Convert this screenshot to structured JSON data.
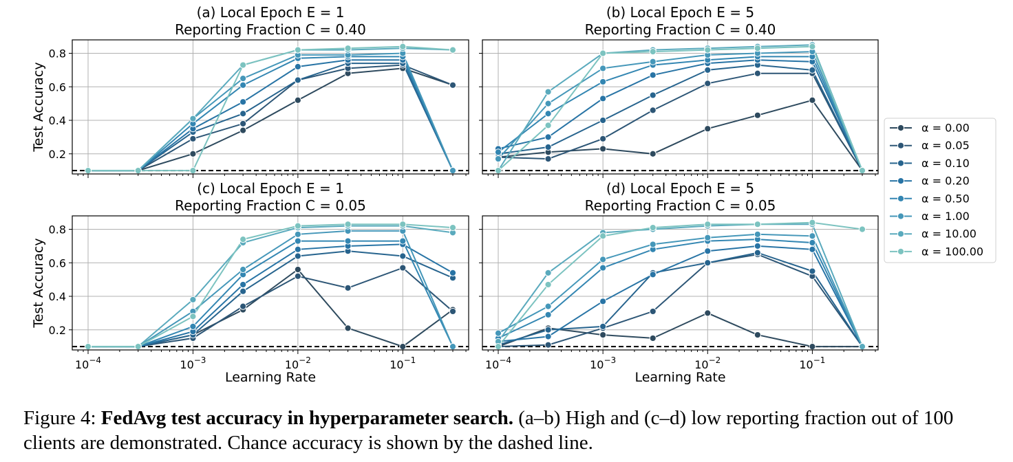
{
  "chart_data": [
    {
      "type": "line",
      "title": "(a) Local Epoch E = 1\nReporting Fraction C = 0.40",
      "ylabel": "Test Accuracy",
      "xlabel": "",
      "xscale": "log",
      "x": [
        0.0001,
        0.0003,
        0.001,
        0.003,
        0.01,
        0.03,
        0.1,
        0.3
      ],
      "xticks": [
        "10^-4",
        "10^-3",
        "10^-2",
        "10^-1"
      ],
      "ylim": [
        0.08,
        0.88
      ],
      "yticks": [
        "0.2",
        "0.4",
        "0.6",
        "0.8"
      ],
      "chance_line": 0.1,
      "grid": true,
      "series": [
        {
          "name": "α = 0.00",
          "values": [
            0.1,
            0.1,
            0.2,
            0.34,
            0.52,
            0.68,
            0.71,
            0.61
          ]
        },
        {
          "name": "α = 0.05",
          "values": [
            0.1,
            0.1,
            0.29,
            0.38,
            0.64,
            0.71,
            0.73,
            0.61
          ]
        },
        {
          "name": "α = 0.10",
          "values": [
            0.1,
            0.1,
            0.33,
            0.44,
            0.64,
            0.74,
            0.74,
            0.1
          ]
        },
        {
          "name": "α = 0.20",
          "values": [
            0.1,
            0.1,
            0.35,
            0.51,
            0.72,
            0.76,
            0.76,
            0.1
          ]
        },
        {
          "name": "α = 0.50",
          "values": [
            0.1,
            0.1,
            0.38,
            0.61,
            0.77,
            0.78,
            0.78,
            0.1
          ]
        },
        {
          "name": "α = 1.00",
          "values": [
            0.1,
            0.1,
            0.41,
            0.65,
            0.79,
            0.79,
            0.8,
            0.1
          ]
        },
        {
          "name": "α = 10.00",
          "values": [
            0.1,
            0.1,
            0.41,
            0.73,
            0.82,
            0.82,
            0.83,
            0.82
          ]
        },
        {
          "name": "α = 100.00",
          "values": [
            0.1,
            0.1,
            0.1,
            0.73,
            0.82,
            0.83,
            0.84,
            0.82
          ]
        }
      ]
    },
    {
      "type": "line",
      "title": "(b) Local Epoch E = 5\nReporting Fraction C = 0.40",
      "ylabel": "",
      "xlabel": "",
      "xscale": "log",
      "x": [
        0.0001,
        0.0003,
        0.001,
        0.003,
        0.01,
        0.03,
        0.1,
        0.3
      ],
      "xticks": [
        "10^-4",
        "10^-3",
        "10^-2",
        "10^-1"
      ],
      "ylim": [
        0.08,
        0.88
      ],
      "yticks": [
        "0.2",
        "0.4",
        "0.6",
        "0.8"
      ],
      "chance_line": 0.1,
      "grid": true,
      "series": [
        {
          "name": "α = 0.00",
          "values": [
            0.18,
            0.21,
            0.23,
            0.2,
            0.35,
            0.43,
            0.52,
            0.1
          ]
        },
        {
          "name": "α = 0.05",
          "values": [
            0.18,
            0.17,
            0.29,
            0.46,
            0.62,
            0.68,
            0.68,
            0.1
          ]
        },
        {
          "name": "α = 0.10",
          "values": [
            0.2,
            0.24,
            0.4,
            0.55,
            0.7,
            0.73,
            0.7,
            0.1
          ]
        },
        {
          "name": "α = 0.20",
          "values": [
            0.23,
            0.3,
            0.53,
            0.67,
            0.74,
            0.76,
            0.75,
            0.1
          ]
        },
        {
          "name": "α = 0.50",
          "values": [
            0.21,
            0.44,
            0.63,
            0.73,
            0.76,
            0.78,
            0.78,
            0.1
          ]
        },
        {
          "name": "α = 1.00",
          "values": [
            0.17,
            0.5,
            0.71,
            0.75,
            0.79,
            0.8,
            0.81,
            0.1
          ]
        },
        {
          "name": "α = 10.00",
          "values": [
            0.1,
            0.57,
            0.8,
            0.82,
            0.83,
            0.84,
            0.85,
            0.1
          ]
        },
        {
          "name": "α = 100.00",
          "values": [
            0.1,
            0.37,
            0.8,
            0.81,
            0.82,
            0.83,
            0.84,
            0.1
          ]
        }
      ]
    },
    {
      "type": "line",
      "title": "(c) Local Epoch E = 1\nReporting Fraction C = 0.05",
      "ylabel": "Test Accuracy",
      "xlabel": "Learning Rate",
      "xscale": "log",
      "x": [
        0.0001,
        0.0003,
        0.001,
        0.003,
        0.01,
        0.03,
        0.1,
        0.3
      ],
      "xticks": [
        "10^-4",
        "10^-3",
        "10^-2",
        "10^-1"
      ],
      "ylim": [
        0.08,
        0.88
      ],
      "yticks": [
        "0.2",
        "0.4",
        "0.6",
        "0.8"
      ],
      "chance_line": 0.1,
      "grid": true,
      "series": [
        {
          "name": "α = 0.00",
          "values": [
            0.1,
            0.1,
            0.17,
            0.32,
            0.56,
            0.21,
            0.1,
            0.32
          ]
        },
        {
          "name": "α = 0.05",
          "values": [
            0.1,
            0.1,
            0.15,
            0.34,
            0.52,
            0.45,
            0.57,
            0.31
          ]
        },
        {
          "name": "α = 0.10",
          "values": [
            0.1,
            0.1,
            0.17,
            0.43,
            0.64,
            0.67,
            0.64,
            0.51
          ]
        },
        {
          "name": "α = 0.20",
          "values": [
            0.1,
            0.1,
            0.19,
            0.47,
            0.68,
            0.7,
            0.71,
            0.54
          ]
        },
        {
          "name": "α = 0.50",
          "values": [
            0.1,
            0.1,
            0.22,
            0.53,
            0.73,
            0.73,
            0.73,
            0.1
          ]
        },
        {
          "name": "α = 1.00",
          "values": [
            0.1,
            0.1,
            0.31,
            0.56,
            0.77,
            0.79,
            0.79,
            0.1
          ]
        },
        {
          "name": "α = 10.00",
          "values": [
            0.1,
            0.1,
            0.38,
            0.72,
            0.81,
            0.82,
            0.82,
            0.78
          ]
        },
        {
          "name": "α = 100.00",
          "values": [
            0.1,
            0.1,
            0.28,
            0.74,
            0.82,
            0.83,
            0.83,
            0.81
          ]
        }
      ]
    },
    {
      "type": "line",
      "title": "(d) Local Epoch E = 5\nReporting Fraction C = 0.05",
      "ylabel": "",
      "xlabel": "Learning Rate",
      "xscale": "log",
      "x": [
        0.0001,
        0.0003,
        0.001,
        0.003,
        0.01,
        0.03,
        0.1,
        0.3
      ],
      "xticks": [
        "10^-4",
        "10^-3",
        "10^-2",
        "10^-1"
      ],
      "ylim": [
        0.08,
        0.88
      ],
      "yticks": [
        "0.2",
        "0.4",
        "0.6",
        "0.8"
      ],
      "chance_line": 0.1,
      "grid": true,
      "series": [
        {
          "name": "α = 0.00",
          "values": [
            0.1,
            0.21,
            0.17,
            0.15,
            0.3,
            0.17,
            0.1,
            0.1
          ]
        },
        {
          "name": "α = 0.05",
          "values": [
            0.1,
            0.11,
            0.21,
            0.31,
            0.6,
            0.65,
            0.52,
            0.1
          ]
        },
        {
          "name": "α = 0.10",
          "values": [
            0.11,
            0.2,
            0.22,
            0.54,
            0.6,
            0.66,
            0.55,
            0.1
          ]
        },
        {
          "name": "α = 0.20",
          "values": [
            0.13,
            0.16,
            0.37,
            0.53,
            0.67,
            0.7,
            0.68,
            0.1
          ]
        },
        {
          "name": "α = 0.50",
          "values": [
            0.15,
            0.29,
            0.57,
            0.68,
            0.73,
            0.74,
            0.72,
            0.1
          ]
        },
        {
          "name": "α = 1.00",
          "values": [
            0.18,
            0.34,
            0.62,
            0.71,
            0.75,
            0.77,
            0.76,
            0.1
          ]
        },
        {
          "name": "α = 10.00",
          "values": [
            0.13,
            0.54,
            0.78,
            0.8,
            0.82,
            0.83,
            0.83,
            0.1
          ]
        },
        {
          "name": "α = 100.00",
          "values": [
            0.1,
            0.47,
            0.76,
            0.81,
            0.83,
            0.83,
            0.84,
            0.8
          ]
        }
      ]
    }
  ],
  "legend": {
    "position": "right",
    "entries": [
      "α = 0.00",
      "α = 0.05",
      "α = 0.10",
      "α = 0.20",
      "α = 0.50",
      "α = 1.00",
      "α = 10.00",
      "α = 100.00"
    ]
  },
  "colors": [
    "#2e4a5e",
    "#2d5676",
    "#27648e",
    "#2874a5",
    "#3386b2",
    "#4597b9",
    "#5aaabd",
    "#7cc3c0"
  ],
  "caption": {
    "label": "Figure 4: ",
    "bold": "FedAvg test accuracy in hyperparameter search.",
    "rest": " (a–b) High and (c–d) low reporting fraction out of 100 clients are demonstrated. Chance accuracy is shown by the dashed line."
  }
}
